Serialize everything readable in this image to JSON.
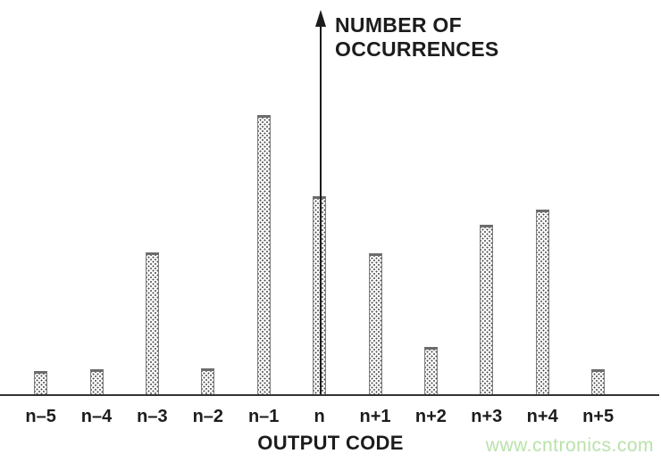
{
  "figure": {
    "y_axis_label_line1": "NUMBER OF",
    "y_axis_label_line2": "OCCURRENCES",
    "x_axis_label": "OUTPUT CODE",
    "watermark": "www.cntronics.com"
  },
  "colors": {
    "background": "#ffffff",
    "text": "#1c1c1c",
    "axis": "#343434",
    "bar_border": "#7e7e7e",
    "bar_stipple_dot": "#4a4a4a",
    "bar_fill": "#fdfdfd",
    "watermark": "#b9e2aa"
  },
  "chart_data": {
    "type": "bar",
    "title": "",
    "xlabel": "OUTPUT CODE",
    "ylabel": "NUMBER OF OCCURRENCES",
    "categories": [
      "n–5",
      "n–4",
      "n–3",
      "n–2",
      "n–1",
      "n",
      "n+1",
      "n+2",
      "n+3",
      "n+4",
      "n+5"
    ],
    "values": [
      28,
      30,
      161,
      31,
      315,
      224,
      160,
      55,
      192,
      209,
      30
    ],
    "value_scale": "relative height (y-axis has no numeric ticks)",
    "ylim": [
      0,
      340
    ],
    "grid": false,
    "legend": "none",
    "bar_style": "stippled outline"
  }
}
